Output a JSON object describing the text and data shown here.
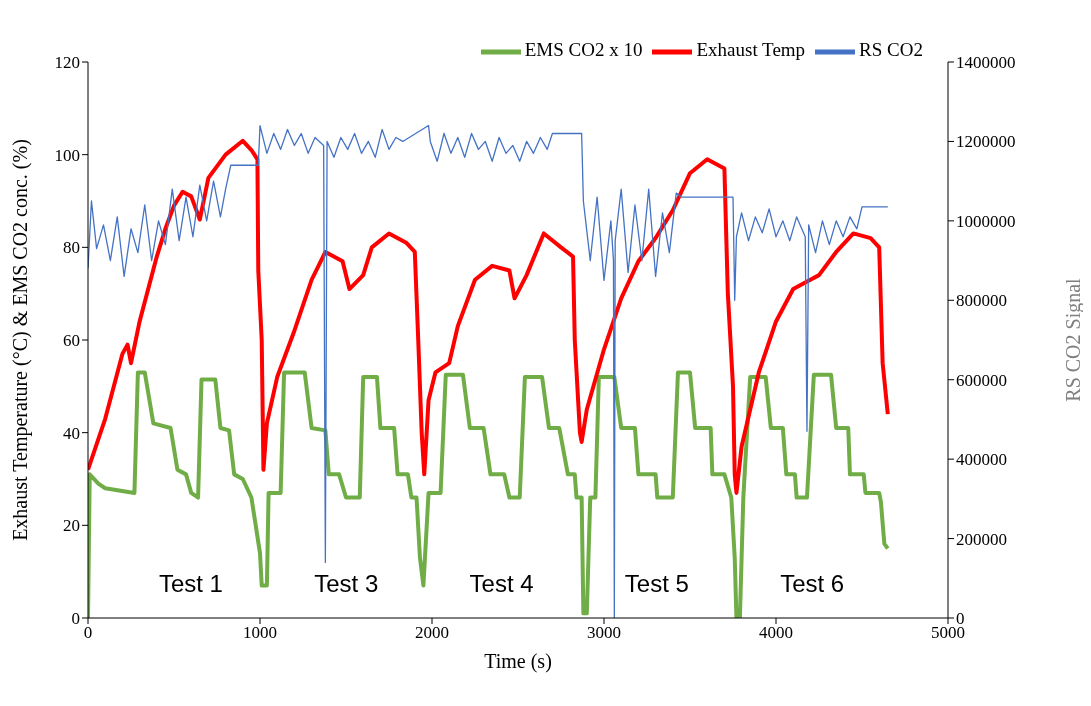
{
  "chart_data": {
    "type": "line",
    "xlabel": "Time (s)",
    "ylabel": "Exhaust Temperature (°C) & EMS CO2 conc. (%)",
    "y2label": "RS CO2 Signal",
    "xlim": [
      0,
      5000
    ],
    "xticks": [
      0,
      1000,
      2000,
      3000,
      4000,
      5000
    ],
    "ylim": [
      0,
      120
    ],
    "yticks": [
      0,
      20,
      40,
      60,
      80,
      100,
      120
    ],
    "y2lim": [
      0,
      1400000
    ],
    "y2ticks": [
      0,
      200000,
      400000,
      600000,
      800000,
      1000000,
      1200000,
      1400000
    ],
    "grid": false,
    "legend": "top right",
    "marker": "none",
    "line_style": "solid",
    "series": [
      {
        "name": "EMS CO2 x 10",
        "color": "#70ad47",
        "x": [
          0,
          10,
          60,
          100,
          270,
          290,
          330,
          380,
          480,
          520,
          570,
          600,
          640,
          660,
          740,
          770,
          820,
          850,
          900,
          950,
          1000,
          1010,
          1040,
          1050,
          1120,
          1140,
          1260,
          1300,
          1380,
          1400,
          1460,
          1500,
          1580,
          1600,
          1680,
          1700,
          1780,
          1800,
          1860,
          1880,
          1910,
          1930,
          1950,
          1980,
          2050,
          2080,
          2180,
          2220,
          2300,
          2340,
          2420,
          2450,
          2510,
          2540,
          2640,
          2680,
          2740,
          2790,
          2830,
          2840,
          2870,
          2880,
          2900,
          2920,
          2950,
          2970,
          3060,
          3100,
          3180,
          3200,
          3300,
          3310,
          3400,
          3430,
          3500,
          3530,
          3620,
          3630,
          3700,
          3740,
          3760,
          3770,
          3790,
          3810,
          3850,
          3940,
          3970,
          4040,
          4060,
          4110,
          4120,
          4180,
          4220,
          4320,
          4350,
          4420,
          4430,
          4510,
          4520,
          4600,
          4610,
          4630,
          4650
        ],
        "values": [
          0,
          31,
          29,
          28,
          27,
          53,
          53,
          42,
          41,
          32,
          31,
          27,
          26,
          51.5,
          51.5,
          41,
          40.5,
          31,
          30,
          26,
          14,
          7,
          7,
          27,
          27,
          53,
          53,
          41,
          40.5,
          31,
          31,
          26,
          26,
          52,
          52,
          41,
          41,
          31,
          31,
          26,
          26,
          13,
          7,
          27,
          27,
          52.5,
          52.5,
          41,
          41,
          31,
          31,
          26,
          26,
          52,
          52,
          41,
          41,
          31,
          31,
          26,
          26,
          1,
          1,
          26,
          26,
          52,
          52,
          41,
          41,
          31,
          31,
          26,
          26,
          53,
          53,
          41,
          41,
          31,
          31,
          26,
          13,
          0,
          0,
          26,
          52,
          52,
          41,
          41,
          31,
          31,
          26,
          26,
          52.5,
          52.5,
          41,
          41,
          31,
          31,
          27,
          27,
          25,
          16,
          15
        ]
      },
      {
        "name": "Exhaust Temp",
        "color": "#ff0000",
        "x": [
          0,
          100,
          200,
          230,
          250,
          300,
          400,
          450,
          500,
          550,
          600,
          650,
          700,
          800,
          900,
          950,
          985,
          990,
          1010,
          1020,
          1040,
          1100,
          1200,
          1300,
          1380,
          1480,
          1520,
          1600,
          1650,
          1750,
          1850,
          1900,
          1920,
          1940,
          1955,
          1980,
          2020,
          2100,
          2150,
          2250,
          2350,
          2450,
          2480,
          2550,
          2650,
          2750,
          2820,
          2830,
          2860,
          2870,
          2900,
          3000,
          3100,
          3200,
          3300,
          3400,
          3500,
          3600,
          3700,
          3720,
          3750,
          3760,
          3770,
          3800,
          3900,
          4000,
          4100,
          4200,
          4250,
          4350,
          4450,
          4550,
          4600,
          4620,
          4650
        ],
        "values": [
          32,
          43,
          57,
          59,
          55,
          64,
          78,
          84,
          89,
          92,
          91,
          86,
          95,
          100,
          103,
          101,
          99,
          75,
          60,
          32,
          42,
          52,
          62,
          73,
          79,
          77,
          71,
          74,
          80,
          83,
          81,
          79,
          60,
          40,
          31,
          47,
          53,
          55,
          63,
          73,
          76,
          75,
          69,
          74,
          83,
          80,
          78,
          60,
          40,
          38,
          45,
          58,
          69,
          77,
          82,
          88,
          96,
          99,
          97,
          70,
          50,
          31,
          27,
          37,
          53,
          64,
          71,
          73,
          74,
          79,
          83,
          82,
          80,
          55,
          44
        ]
      },
      {
        "name": "RS CO2",
        "color": "#4472c4",
        "axis": "y2",
        "x": [
          0,
          20,
          50,
          90,
          130,
          170,
          210,
          250,
          290,
          330,
          370,
          410,
          450,
          490,
          530,
          570,
          610,
          650,
          690,
          730,
          770,
          800,
          830,
          990,
          1000,
          1040,
          1080,
          1120,
          1160,
          1200,
          1240,
          1280,
          1320,
          1370,
          1380,
          1390,
          1430,
          1470,
          1510,
          1550,
          1590,
          1630,
          1670,
          1710,
          1750,
          1790,
          1830,
          1980,
          1990,
          2030,
          2070,
          2110,
          2150,
          2190,
          2230,
          2270,
          2310,
          2350,
          2390,
          2430,
          2470,
          2510,
          2550,
          2590,
          2630,
          2670,
          2700,
          2870,
          2880,
          2920,
          2960,
          3000,
          3040,
          3055,
          3060,
          3065,
          3100,
          3140,
          3180,
          3220,
          3260,
          3300,
          3340,
          3380,
          3420,
          3450,
          3750,
          3760,
          3770,
          3800,
          3840,
          3880,
          3920,
          3960,
          4000,
          4040,
          4080,
          4120,
          4170,
          4180,
          4190,
          4230,
          4270,
          4310,
          4350,
          4390,
          4430,
          4470,
          4500,
          4650
        ],
        "values": [
          880000,
          1050000,
          930000,
          990000,
          900000,
          1010000,
          860000,
          980000,
          920000,
          1040000,
          900000,
          1000000,
          940000,
          1080000,
          950000,
          1060000,
          960000,
          1090000,
          1000000,
          1100000,
          1010000,
          1080000,
          1140000,
          1140000,
          1240000,
          1170000,
          1220000,
          1180000,
          1230000,
          1190000,
          1220000,
          1170000,
          1210000,
          1190000,
          140000,
          1200000,
          1160000,
          1210000,
          1180000,
          1220000,
          1170000,
          1200000,
          1160000,
          1230000,
          1180000,
          1210000,
          1200000,
          1240000,
          1200000,
          1150000,
          1220000,
          1170000,
          1210000,
          1160000,
          1220000,
          1180000,
          1200000,
          1150000,
          1210000,
          1170000,
          1190000,
          1150000,
          1200000,
          1170000,
          1210000,
          1180000,
          1220000,
          1220000,
          1050000,
          900000,
          1060000,
          850000,
          1000000,
          900000,
          0,
          950000,
          1080000,
          870000,
          1040000,
          900000,
          1080000,
          860000,
          1020000,
          920000,
          1070000,
          1060000,
          1060000,
          800000,
          960000,
          1020000,
          950000,
          1010000,
          970000,
          1030000,
          960000,
          1000000,
          950000,
          1010000,
          960000,
          470000,
          990000,
          920000,
          1000000,
          940000,
          1000000,
          960000,
          1010000,
          980000,
          1035000,
          1035000
        ]
      }
    ],
    "annotations": [
      "Test 1",
      "Test 3",
      "Test 4",
      "Test 5",
      "Test 6"
    ]
  }
}
